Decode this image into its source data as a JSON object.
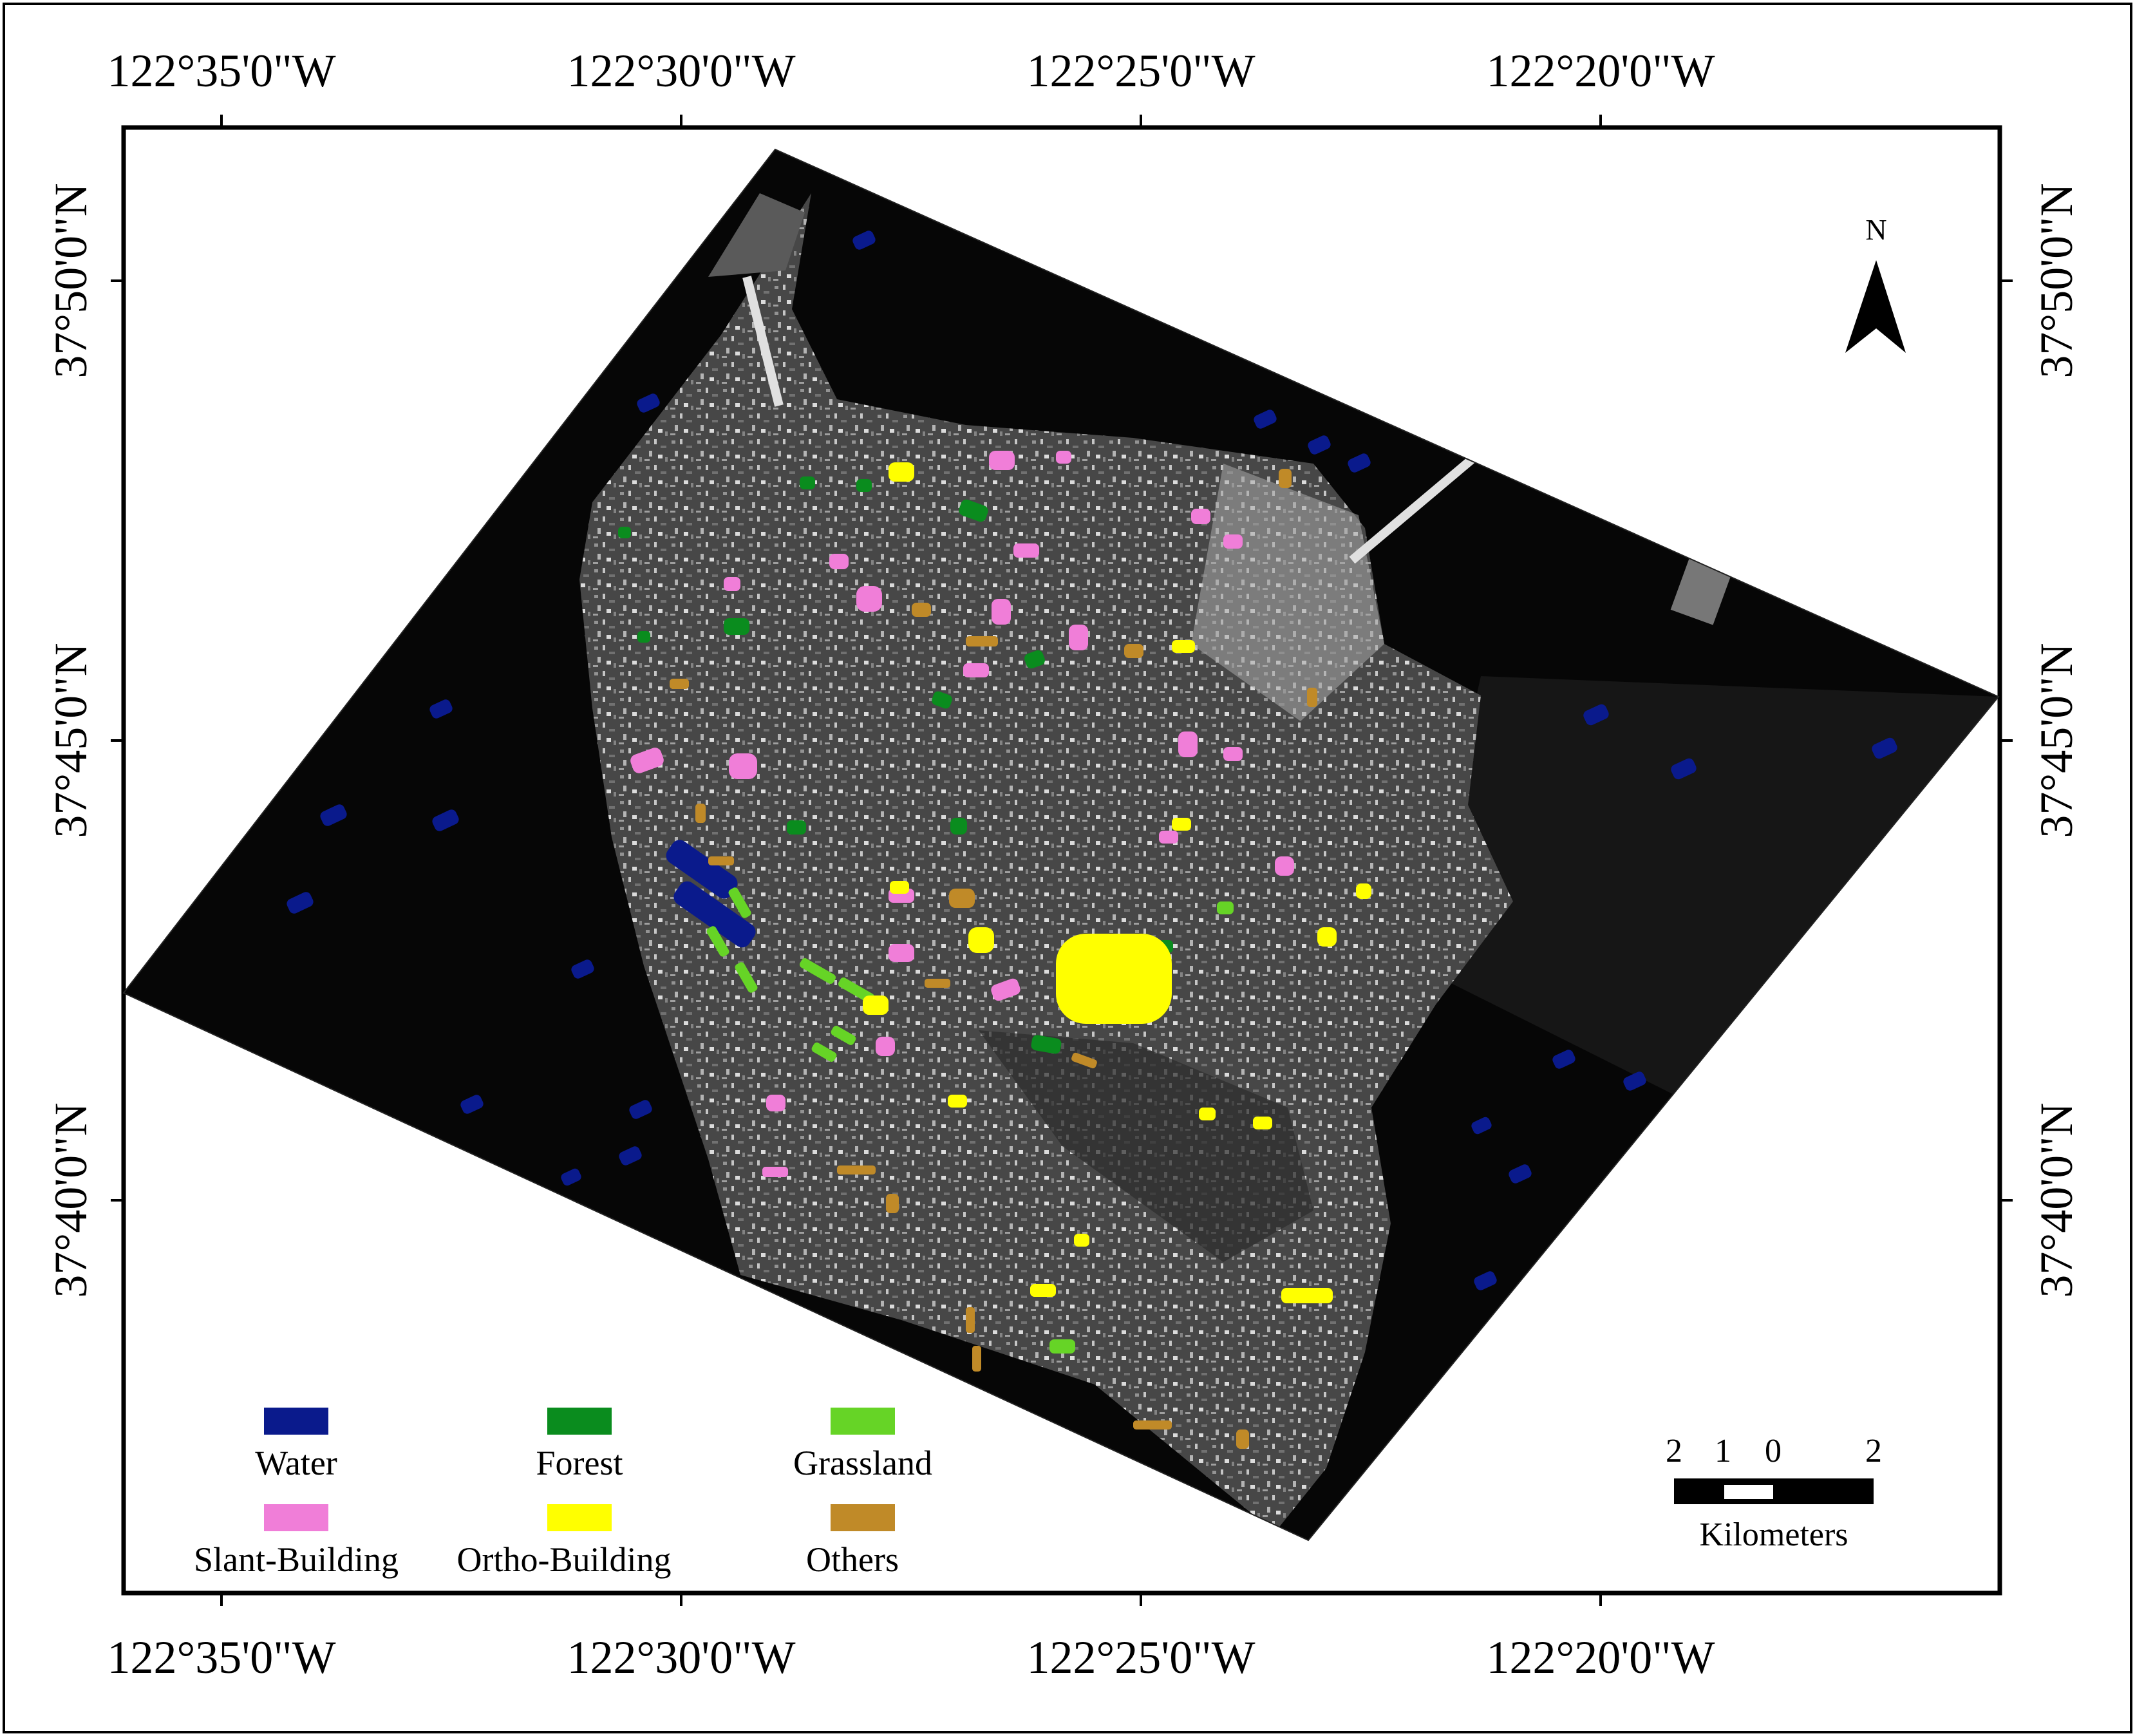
{
  "map": {
    "lon_labels": [
      "122°35'0\"W",
      "122°30'0\"W",
      "122°25'0\"W",
      "122°20'0\"W"
    ],
    "lat_labels": [
      "37°50'0\"N",
      "37°45'0\"N",
      "37°40'0\"N"
    ],
    "north_label": "N",
    "background_image": "SAR radar image of San Francisco (grayscale)"
  },
  "legend": {
    "items": [
      {
        "label": "Water",
        "color": "#0a1a8c"
      },
      {
        "label": "Forest",
        "color": "#0a8c1e"
      },
      {
        "label": "Grassland",
        "color": "#66d426"
      },
      {
        "label": "Slant-Building",
        "color": "#f07ed8"
      },
      {
        "label": "Ortho-Building",
        "color": "#ffff00"
      },
      {
        "label": "Others",
        "color": "#c08a28"
      }
    ]
  },
  "scale_bar": {
    "tick_labels": [
      "2",
      "1",
      "0",
      "2"
    ],
    "unit": "Kilometers"
  }
}
